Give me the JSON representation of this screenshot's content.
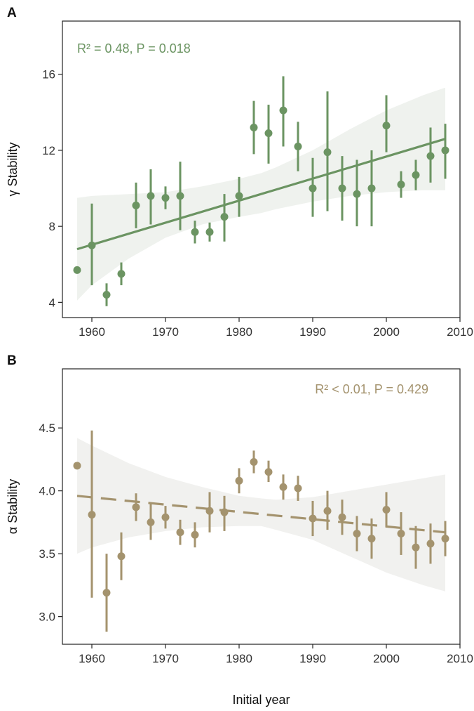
{
  "chart_data": [
    {
      "type": "scatter",
      "panel_label": "A",
      "annotation": "R² = 0.48, P = 0.018",
      "xlabel": "",
      "ylabel": "γ Stability",
      "xlim": [
        1956,
        2010
      ],
      "ylim": [
        3.2,
        18.8
      ],
      "xticks": [
        1960,
        1970,
        1980,
        1990,
        2000,
        2010
      ],
      "yticks": [
        4,
        8,
        12,
        16
      ],
      "ytick_format": "int",
      "grid": false,
      "color": "#6b9462",
      "band_color": "#eff2ee",
      "series": [
        {
          "x": [
            1958,
            1960,
            1962,
            1964,
            1966,
            1968,
            1970,
            1972,
            1974,
            1976,
            1978,
            1980,
            1982,
            1984,
            1986,
            1988,
            1990,
            1992,
            1994,
            1996,
            1998,
            2000,
            2002,
            2004,
            2006,
            2008
          ],
          "y": [
            5.7,
            7.0,
            4.4,
            5.5,
            9.1,
            9.6,
            9.5,
            9.6,
            7.7,
            7.7,
            8.5,
            9.6,
            13.2,
            12.9,
            14.1,
            12.2,
            10.0,
            11.9,
            10.0,
            9.7,
            10.0,
            13.3,
            10.2,
            10.7,
            11.7,
            12.0
          ],
          "err_low": [
            5.7,
            4.9,
            3.8,
            4.9,
            7.9,
            8.1,
            8.9,
            7.8,
            7.1,
            7.2,
            7.2,
            8.5,
            11.8,
            11.3,
            12.2,
            10.9,
            8.5,
            8.8,
            8.3,
            8.0,
            8.0,
            11.9,
            9.5,
            9.9,
            10.3,
            10.5
          ],
          "err_high": [
            5.7,
            9.2,
            5.0,
            6.1,
            10.3,
            11.0,
            10.1,
            11.4,
            8.3,
            8.2,
            9.7,
            10.6,
            14.6,
            14.4,
            15.9,
            13.5,
            11.6,
            15.1,
            11.7,
            11.5,
            12.0,
            14.9,
            10.9,
            11.5,
            13.2,
            13.4
          ]
        }
      ],
      "trend": {
        "style": "solid",
        "x": [
          1958,
          2008
        ],
        "y": [
          6.8,
          12.6
        ]
      },
      "confidence_band": {
        "x": [
          1958,
          1960,
          1965,
          1970,
          1975,
          1980,
          1983,
          1985,
          1990,
          1995,
          2000,
          2005,
          2008
        ],
        "lower": [
          4.1,
          4.9,
          6.3,
          7.4,
          8.1,
          8.5,
          8.7,
          8.9,
          9.3,
          9.6,
          9.8,
          9.9,
          9.9
        ],
        "upper": [
          9.5,
          9.6,
          9.7,
          9.8,
          10.1,
          10.5,
          10.8,
          11.1,
          12.0,
          13.1,
          14.1,
          14.9,
          15.3
        ]
      }
    },
    {
      "type": "scatter",
      "panel_label": "B",
      "annotation": "R² < 0.01, P = 0.429",
      "xlabel": "Initial year",
      "ylabel": "α Stability",
      "xlim": [
        1956,
        2010
      ],
      "ylim": [
        2.78,
        4.97
      ],
      "xticks": [
        1960,
        1970,
        1980,
        1990,
        2000,
        2010
      ],
      "yticks": [
        3.0,
        3.5,
        4.0,
        4.5
      ],
      "ytick_format": "1dp",
      "grid": false,
      "color": "#a4936e",
      "band_color": "#f1f1ef",
      "series": [
        {
          "x": [
            1958,
            1960,
            1962,
            1964,
            1966,
            1968,
            1970,
            1972,
            1974,
            1976,
            1978,
            1980,
            1982,
            1984,
            1986,
            1988,
            1990,
            1992,
            1994,
            1996,
            1998,
            2000,
            2002,
            2004,
            2006,
            2008
          ],
          "y": [
            4.2,
            3.81,
            3.19,
            3.48,
            3.87,
            3.75,
            3.79,
            3.67,
            3.65,
            3.84,
            3.83,
            4.08,
            4.23,
            4.15,
            4.03,
            4.02,
            3.78,
            3.84,
            3.79,
            3.66,
            3.62,
            3.85,
            3.66,
            3.55,
            3.58,
            3.62
          ],
          "err_low": [
            4.2,
            3.15,
            2.88,
            3.29,
            3.76,
            3.61,
            3.7,
            3.57,
            3.55,
            3.67,
            3.68,
            3.98,
            4.14,
            4.07,
            3.93,
            3.92,
            3.64,
            3.69,
            3.65,
            3.52,
            3.46,
            3.71,
            3.49,
            3.38,
            3.42,
            3.48
          ],
          "err_high": [
            4.2,
            4.48,
            3.5,
            3.67,
            3.98,
            3.9,
            3.88,
            3.77,
            3.75,
            3.99,
            3.96,
            4.18,
            4.32,
            4.24,
            4.13,
            4.12,
            3.92,
            4.0,
            3.93,
            3.8,
            3.78,
            3.99,
            3.83,
            3.72,
            3.74,
            3.76
          ]
        }
      ],
      "trend": {
        "style": "dashed",
        "x": [
          1958,
          2008
        ],
        "y": [
          3.96,
          3.67
        ]
      },
      "confidence_band": {
        "x": [
          1958,
          1960,
          1965,
          1970,
          1975,
          1980,
          1983,
          1985,
          1990,
          1995,
          2000,
          2005,
          2008
        ],
        "lower": [
          3.5,
          3.55,
          3.63,
          3.68,
          3.71,
          3.72,
          3.72,
          3.69,
          3.61,
          3.48,
          3.35,
          3.25,
          3.2
        ],
        "upper": [
          4.42,
          4.36,
          4.22,
          4.11,
          4.03,
          3.96,
          3.94,
          3.93,
          3.95,
          4.0,
          4.05,
          4.1,
          4.13
        ]
      }
    }
  ]
}
